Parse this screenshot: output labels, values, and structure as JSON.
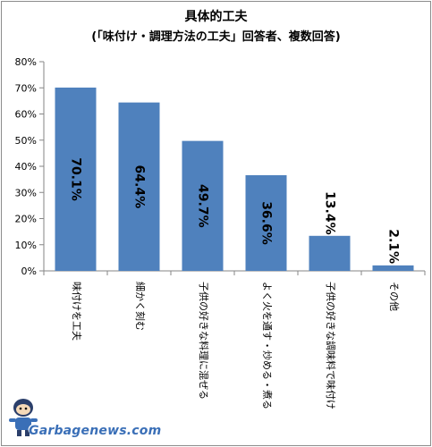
{
  "chart_data": {
    "type": "bar",
    "title": "具体的工夫",
    "subtitle": "(「味付け・調理方法の工夫」回答者、複数回答)",
    "categories": [
      "味付けを工夫",
      "細かく刻む",
      "子供の好きな料理に混ぜる",
      "よく火を通す・炒める・煮る",
      "子供の好きな調味料で味付け",
      "その他"
    ],
    "values": [
      70.1,
      64.4,
      49.7,
      36.6,
      13.4,
      2.1
    ],
    "data_labels": [
      "70.1%",
      "64.4%",
      "49.7%",
      "36.6%",
      "13.4%",
      "2.1%"
    ],
    "yticks": [
      "0%",
      "10%",
      "20%",
      "30%",
      "40%",
      "50%",
      "60%",
      "70%",
      "80%"
    ],
    "ylim": [
      0,
      80
    ],
    "grid": false,
    "legend": "none",
    "bar_color": "#4f81bd"
  },
  "watermark": {
    "text": "Garbagenews.com",
    "mascot": "mascot-character-icon"
  }
}
